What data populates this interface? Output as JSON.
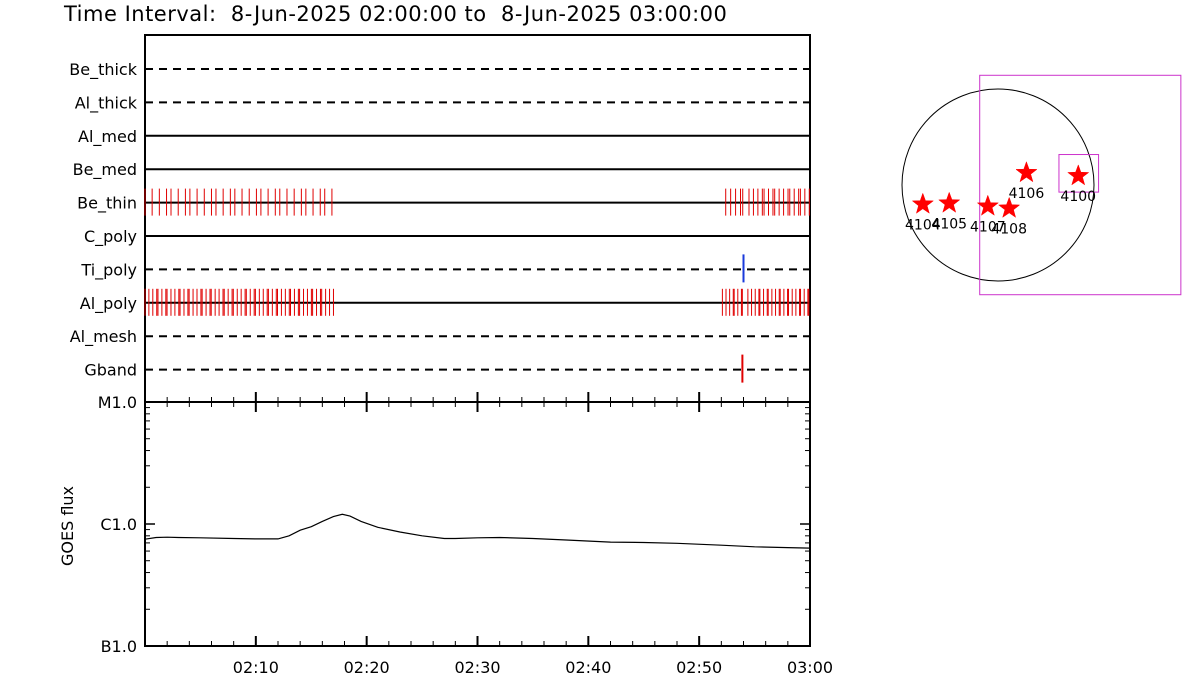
{
  "title": "Time Interval:  8-Jun-2025 02:00:00 to  8-Jun-2025 03:00:00",
  "colors": {
    "event_red": "#e00000",
    "event_blue": "#1a3adb",
    "fov_magenta": "#cc33cc",
    "star_red": "#ff0000",
    "line": "#000000"
  },
  "chart_data": [
    {
      "type": "timeline",
      "name": "filter_coverage",
      "time_range": [
        "02:00",
        "03:00"
      ],
      "rows": [
        {
          "label": "Be_thick",
          "style": "dashed"
        },
        {
          "label": "Al_thick",
          "style": "dashed"
        },
        {
          "label": "Al_med",
          "style": "solid"
        },
        {
          "label": "Be_med",
          "style": "solid"
        },
        {
          "label": "Be_thin",
          "style": "solid",
          "events_color": "red",
          "events": [
            [
              0.1,
              16.9,
              30
            ],
            [
              52.5,
              54.0,
              5
            ],
            [
              54.6,
              59.9,
              17
            ]
          ]
        },
        {
          "label": "C_poly",
          "style": "solid"
        },
        {
          "label": "Ti_poly",
          "style": "dashed",
          "events_color": "blue",
          "events": [
            [
              54.0,
              54.0,
              1
            ]
          ]
        },
        {
          "label": "Al_poly",
          "style": "solid",
          "events_color": "red",
          "events": [
            [
              0.1,
              16.9,
              60
            ],
            [
              52.2,
              54.0,
              8
            ],
            [
              54.5,
              60.0,
              22
            ]
          ]
        },
        {
          "label": "Al_mesh",
          "style": "dashed"
        },
        {
          "label": "Gband",
          "style": "dashed",
          "events_color": "red",
          "events": [
            [
              53.9,
              53.9,
              1
            ]
          ]
        }
      ]
    },
    {
      "type": "line",
      "name": "goes_flux",
      "ylabel": "GOES flux",
      "yscale": "log",
      "ylim": [
        1e-07,
        1e-05
      ],
      "ytick_labels": [
        "B1.0",
        "C1.0",
        "M1.0"
      ],
      "ytick_values": [
        1e-07,
        1e-06,
        1e-05
      ],
      "xlim": [
        0,
        60
      ],
      "xtick_labels": [
        "02:10",
        "02:20",
        "02:30",
        "02:40",
        "02:50",
        "03:00"
      ],
      "xtick_values": [
        10,
        20,
        30,
        40,
        50,
        60
      ],
      "x_units": "minutes after 02:00",
      "x": [
        0,
        1,
        2,
        3,
        5,
        8,
        10,
        12,
        13,
        14,
        15,
        16,
        17,
        17.8,
        18.5,
        19.5,
        21,
        23,
        25,
        27,
        28,
        30,
        32,
        35,
        38,
        42,
        45,
        48,
        52,
        55,
        58,
        60
      ],
      "y": [
        7.5e-07,
        7.75e-07,
        7.8e-07,
        7.75e-07,
        7.7e-07,
        7.6e-07,
        7.55e-07,
        7.55e-07,
        8e-07,
        8.9e-07,
        9.5e-07,
        1.05e-06,
        1.15e-06,
        1.2e-06,
        1.16e-06,
        1.05e-06,
        9.4e-07,
        8.6e-07,
        8e-07,
        7.6e-07,
        7.6e-07,
        7.7e-07,
        7.75e-07,
        7.6e-07,
        7.4e-07,
        7.1e-07,
        7.05e-07,
        6.95e-07,
        6.7e-07,
        6.5e-07,
        6.4e-07,
        6.35e-07
      ]
    },
    {
      "type": "scatter",
      "name": "active_regions_solar_disk",
      "x_units": "arcsec",
      "y_units": "arcsec",
      "solar_radius_arcsec": 945,
      "points": [
        {
          "label": "4104",
          "x": -740,
          "y": -190
        },
        {
          "label": "4105",
          "x": -480,
          "y": -180
        },
        {
          "label": "4107",
          "x": -100,
          "y": -210
        },
        {
          "label": "4108",
          "x": 110,
          "y": -230
        },
        {
          "label": "4106",
          "x": 280,
          "y": 120
        },
        {
          "label": "4100",
          "x": 790,
          "y": 90
        }
      ],
      "fov_large_arcsec": {
        "x": [
          -180,
          1800
        ],
        "y": [
          -1080,
          1080
        ]
      },
      "fov_small_arcsec": {
        "x": [
          600,
          990
        ],
        "y": [
          -70,
          300
        ]
      }
    }
  ]
}
